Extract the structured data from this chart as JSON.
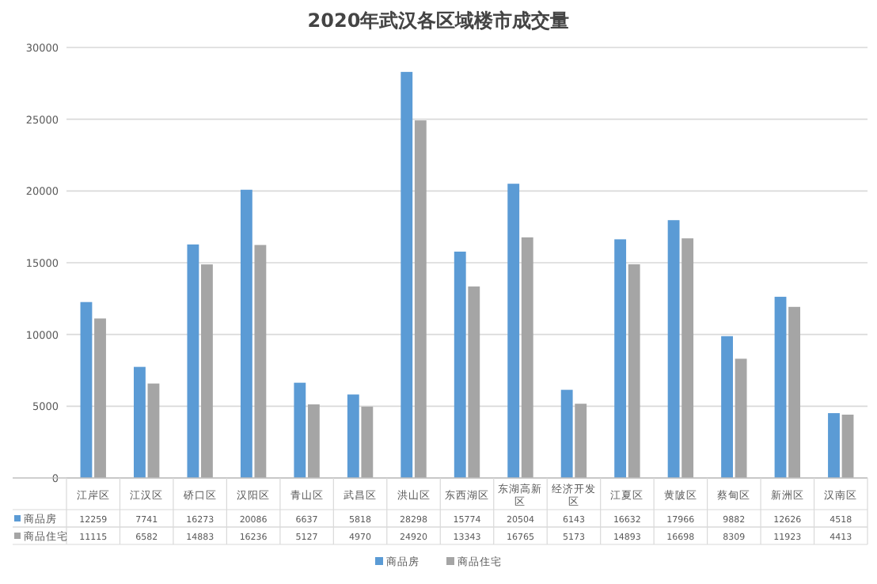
{
  "chart_data": {
    "type": "bar",
    "title": "2020年武汉各区域楼市成交量",
    "categories": [
      "江岸区",
      "江汉区",
      "硚口区",
      "汉阳区",
      "青山区",
      "武昌区",
      "洪山区",
      "东西湖区",
      "东湖高新区",
      "经济开发区",
      "江夏区",
      "黄陂区",
      "蔡甸区",
      "新洲区",
      "汉南区"
    ],
    "series": [
      {
        "name": "商品房",
        "color": "#5b9bd5",
        "values": [
          12259,
          7741,
          16273,
          20086,
          6637,
          5818,
          28298,
          15774,
          20504,
          6143,
          16632,
          17966,
          9882,
          12626,
          4518
        ]
      },
      {
        "name": "商品住宅",
        "color": "#a5a5a5",
        "values": [
          11115,
          6582,
          14883,
          16236,
          5127,
          4970,
          24920,
          13343,
          16765,
          5173,
          14893,
          16698,
          8309,
          11923,
          4413
        ]
      }
    ],
    "ylim": [
      0,
      30000
    ],
    "yticks": [
      0,
      5000,
      10000,
      15000,
      20000,
      25000,
      30000
    ],
    "grid": "y",
    "legend": "bottom",
    "data_labels": true
  }
}
